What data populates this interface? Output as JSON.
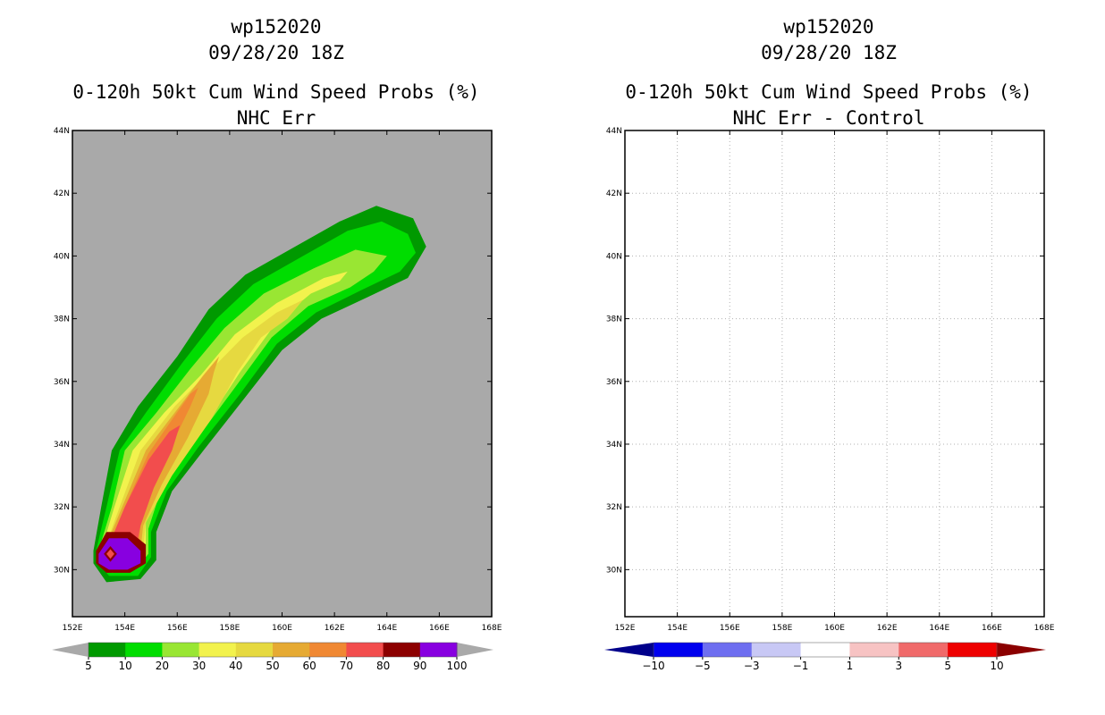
{
  "left_panel": {
    "storm_id": "wp152020",
    "datetime": "09/28/20 18Z",
    "product": "0-120h 50kt Cum Wind Speed Probs (%)",
    "subtitle": "NHC Err"
  },
  "right_panel": {
    "storm_id": "wp152020",
    "datetime": "09/28/20 18Z",
    "product": "0-120h 50kt Cum Wind Speed Probs (%)",
    "subtitle": "NHC Err - Control"
  },
  "chart_data": [
    {
      "type": "heatmap",
      "title": "0-120h 50kt Cum Wind Speed Probs (%) - NHC Err",
      "x_ticks": [
        "152E",
        "154E",
        "156E",
        "158E",
        "160E",
        "162E",
        "164E",
        "166E",
        "168E"
      ],
      "y_ticks": [
        "30N",
        "32N",
        "34N",
        "36N",
        "38N",
        "40N",
        "42N",
        "44N"
      ],
      "xlim": [
        152,
        168
      ],
      "ylim": [
        28.5,
        44
      ],
      "grid": false,
      "background_color": "#a9a9a9",
      "colorbar": {
        "labels": [
          "5",
          "10",
          "20",
          "30",
          "40",
          "50",
          "60",
          "70",
          "80",
          "90",
          "100"
        ],
        "colors": [
          "#009900",
          "#00dd00",
          "#99e633",
          "#f2f24d",
          "#e6d940",
          "#e6aa33",
          "#f08833",
          "#f24d4d",
          "#8c0000",
          "#8800e0"
        ],
        "end_colors": [
          "#a9a9a9",
          "#a9a9a9"
        ]
      },
      "contours": [
        {
          "level": 5,
          "color": "#009900",
          "points": [
            [
              152.8,
              30.6
            ],
            [
              153.1,
              32
            ],
            [
              153.5,
              33.8
            ],
            [
              154.5,
              35.2
            ],
            [
              156,
              36.8
            ],
            [
              157.2,
              38.3
            ],
            [
              158.6,
              39.4
            ],
            [
              160.5,
              40.3
            ],
            [
              162.2,
              41.1
            ],
            [
              163.6,
              41.6
            ],
            [
              165,
              41.2
            ],
            [
              165.5,
              40.3
            ],
            [
              164.8,
              39.3
            ],
            [
              163.3,
              38.7
            ],
            [
              161.5,
              38
            ],
            [
              160,
              37
            ],
            [
              158.6,
              35.5
            ],
            [
              157,
              33.8
            ],
            [
              155.8,
              32.5
            ],
            [
              155.2,
              31.2
            ],
            [
              155.2,
              30.3
            ],
            [
              154.6,
              29.7
            ],
            [
              153.3,
              29.6
            ],
            [
              152.8,
              30.2
            ]
          ]
        },
        {
          "level": 10,
          "color": "#00dd00",
          "points": [
            [
              152.9,
              30.6
            ],
            [
              153.3,
              32
            ],
            [
              153.8,
              33.8
            ],
            [
              154.8,
              35
            ],
            [
              156.2,
              36.6
            ],
            [
              157.5,
              38
            ],
            [
              158.9,
              39.1
            ],
            [
              160.8,
              40
            ],
            [
              162.5,
              40.8
            ],
            [
              163.8,
              41.1
            ],
            [
              164.8,
              40.7
            ],
            [
              165.1,
              40.1
            ],
            [
              164.5,
              39.5
            ],
            [
              163,
              38.9
            ],
            [
              161.3,
              38.2
            ],
            [
              159.8,
              37.2
            ],
            [
              158.4,
              35.6
            ],
            [
              156.8,
              33.9
            ],
            [
              155.6,
              32.5
            ],
            [
              155,
              31.2
            ],
            [
              155,
              30.4
            ],
            [
              154.5,
              29.8
            ],
            [
              153.4,
              29.8
            ],
            [
              152.9,
              30.3
            ]
          ]
        },
        {
          "level": 20,
          "color": "#99e633",
          "points": [
            [
              153,
              30.6
            ],
            [
              153.5,
              32
            ],
            [
              154,
              33.8
            ],
            [
              155.2,
              35
            ],
            [
              156.5,
              36.4
            ],
            [
              157.8,
              37.7
            ],
            [
              159.3,
              38.8
            ],
            [
              161.2,
              39.6
            ],
            [
              162.8,
              40.2
            ],
            [
              164,
              40
            ],
            [
              163.5,
              39.5
            ],
            [
              162.6,
              39
            ],
            [
              161,
              38.4
            ],
            [
              159.6,
              37.4
            ],
            [
              158.2,
              35.8
            ],
            [
              156.6,
              34
            ],
            [
              155.4,
              32.6
            ],
            [
              154.9,
              31.3
            ],
            [
              154.9,
              30.5
            ],
            [
              154.4,
              30
            ],
            [
              153.5,
              29.9
            ],
            [
              153,
              30.3
            ]
          ]
        },
        {
          "level": 30,
          "color": "#f2f24d",
          "points": [
            [
              153.1,
              30.6
            ],
            [
              153.6,
              32
            ],
            [
              154.3,
              33.8
            ],
            [
              155.5,
              35
            ],
            [
              156.9,
              36.2
            ],
            [
              158.2,
              37.5
            ],
            [
              159.8,
              38.5
            ],
            [
              161.6,
              39.3
            ],
            [
              162.5,
              39.5
            ],
            [
              162.2,
              39.2
            ],
            [
              161.1,
              38.8
            ],
            [
              159.8,
              37.9
            ],
            [
              158.4,
              36.3
            ],
            [
              156.9,
              34.4
            ],
            [
              155.6,
              32.9
            ],
            [
              154.8,
              31.5
            ],
            [
              154.8,
              30.6
            ],
            [
              154.3,
              30.1
            ],
            [
              153.6,
              30
            ],
            [
              153.1,
              30.3
            ]
          ]
        },
        {
          "level": 40,
          "color": "#e6d940",
          "points": [
            [
              153.2,
              30.6
            ],
            [
              153.8,
              32
            ],
            [
              154.6,
              33.8
            ],
            [
              155.9,
              35.2
            ],
            [
              157.2,
              36.3
            ],
            [
              158.5,
              37.4
            ],
            [
              159.8,
              38.2
            ],
            [
              160.8,
              38.6
            ],
            [
              160.2,
              38
            ],
            [
              159.2,
              37.4
            ],
            [
              158.3,
              36.3
            ],
            [
              157.3,
              34.8
            ],
            [
              155.8,
              33
            ],
            [
              154.8,
              31.5
            ],
            [
              154.7,
              30.6
            ],
            [
              154.2,
              30.2
            ],
            [
              153.6,
              30.1
            ],
            [
              153.2,
              30.3
            ]
          ]
        },
        {
          "level": 50,
          "color": "#e6aa33",
          "points": [
            [
              153.2,
              30.6
            ],
            [
              153.9,
              32
            ],
            [
              154.8,
              33.8
            ],
            [
              155.9,
              35
            ],
            [
              157,
              36.2
            ],
            [
              157.6,
              36.8
            ],
            [
              157.4,
              36.3
            ],
            [
              157.2,
              35.6
            ],
            [
              156.4,
              34.2
            ],
            [
              155.4,
              32.7
            ],
            [
              154.7,
              31.4
            ],
            [
              154.6,
              30.6
            ],
            [
              154.2,
              30.2
            ],
            [
              153.6,
              30.1
            ],
            [
              153.2,
              30.3
            ]
          ]
        },
        {
          "level": 60,
          "color": "#f08833",
          "points": [
            [
              153.3,
              30.6
            ],
            [
              154,
              32
            ],
            [
              154.9,
              33.7
            ],
            [
              155.9,
              34.9
            ],
            [
              156.5,
              35.6
            ],
            [
              156.8,
              35.8
            ],
            [
              156.5,
              35.2
            ],
            [
              155.8,
              34
            ],
            [
              155,
              32.6
            ],
            [
              154.6,
              31.4
            ],
            [
              154.5,
              30.6
            ],
            [
              154.1,
              30.2
            ],
            [
              153.6,
              30.2
            ],
            [
              153.3,
              30.4
            ]
          ]
        },
        {
          "level": 70,
          "color": "#f24d4d",
          "points": [
            [
              153.3,
              30.6
            ],
            [
              154,
              32
            ],
            [
              154.9,
              33.5
            ],
            [
              155.7,
              34.4
            ],
            [
              156.1,
              34.6
            ],
            [
              155.8,
              33.8
            ],
            [
              155.1,
              32.6
            ],
            [
              154.6,
              31.4
            ],
            [
              154.4,
              30.6
            ],
            [
              154.1,
              30.3
            ],
            [
              153.6,
              30.2
            ],
            [
              153.3,
              30.4
            ]
          ]
        },
        {
          "level": 80,
          "color": "#8c0000",
          "points": [
            [
              152.9,
              30.6
            ],
            [
              153.3,
              31.2
            ],
            [
              154.2,
              31.2
            ],
            [
              154.8,
              30.8
            ],
            [
              154.8,
              30.2
            ],
            [
              154.2,
              29.9
            ],
            [
              153.3,
              29.9
            ],
            [
              152.9,
              30.2
            ]
          ]
        },
        {
          "level": 90,
          "color": "#8800e0",
          "points": [
            [
              153,
              30.5
            ],
            [
              153.4,
              31
            ],
            [
              154.1,
              31
            ],
            [
              154.6,
              30.6
            ],
            [
              154.6,
              30.2
            ],
            [
              154.1,
              30
            ],
            [
              153.4,
              30
            ],
            [
              153,
              30.2
            ]
          ]
        },
        {
          "level": 80,
          "color": "#8c0000",
          "points": [
            [
              153.2,
              30.5
            ],
            [
              153.45,
              30.75
            ],
            [
              153.7,
              30.5
            ],
            [
              153.45,
              30.25
            ]
          ]
        },
        {
          "level": 70,
          "color": "#f24d4d",
          "points": [
            [
              153.3,
              30.5
            ],
            [
              153.45,
              30.65
            ],
            [
              153.6,
              30.5
            ],
            [
              153.45,
              30.35
            ]
          ]
        }
      ]
    },
    {
      "type": "heatmap",
      "title": "0-120h 50kt Cum Wind Speed Probs (%) - NHC Err - Control",
      "x_ticks": [
        "152E",
        "154E",
        "156E",
        "158E",
        "160E",
        "162E",
        "164E",
        "166E",
        "168E"
      ],
      "y_ticks": [
        "30N",
        "32N",
        "34N",
        "36N",
        "38N",
        "40N",
        "42N",
        "44N"
      ],
      "xlim": [
        152,
        168
      ],
      "ylim": [
        28.5,
        44
      ],
      "grid": true,
      "background_color": "#ffffff",
      "colorbar": {
        "labels": [
          "-10",
          "-5",
          "-3",
          "-1",
          "1",
          "3",
          "5",
          "10"
        ],
        "colors": [
          "#0000ee",
          "#6e6ef0",
          "#c8c8f5",
          "#ffffff",
          "#f7c3c3",
          "#f06a6a",
          "#ee0000"
        ],
        "end_colors": [
          "#00008b",
          "#8b0000"
        ]
      },
      "contours": []
    }
  ]
}
